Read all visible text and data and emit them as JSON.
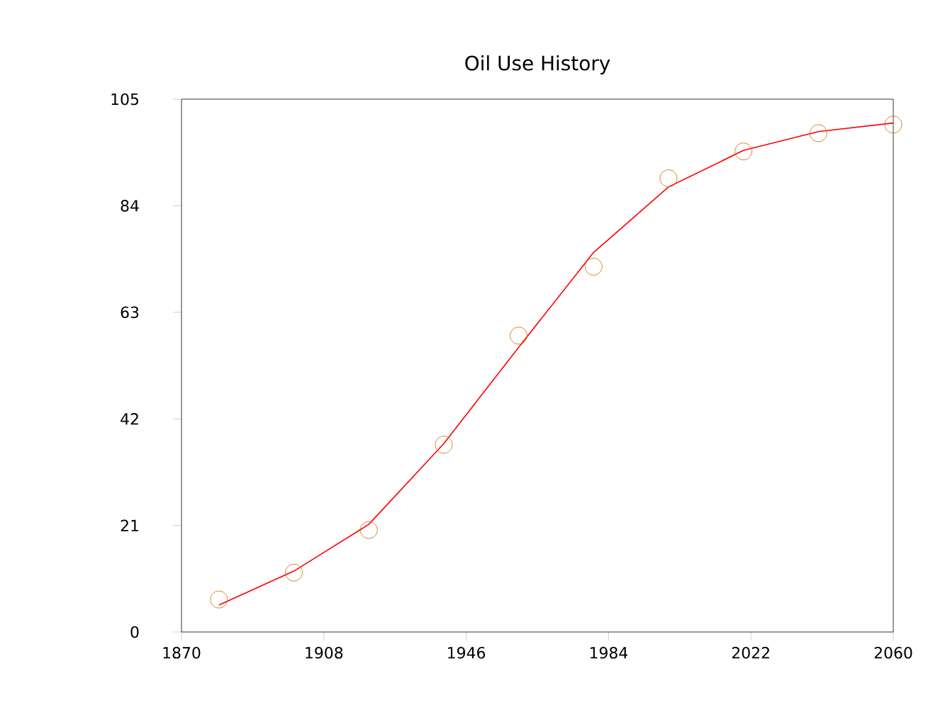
{
  "chart_data": {
    "type": "line",
    "title": "Oil Use History",
    "xlim": [
      1870,
      2060
    ],
    "ylim": [
      0,
      105
    ],
    "xticks": [
      1870,
      1908,
      1946,
      1984,
      2022,
      2060
    ],
    "yticks": [
      0,
      21,
      42,
      63,
      84,
      105
    ],
    "series": [
      {
        "color": "#ff0000",
        "marker": "none",
        "line_style": "solid",
        "x": [
          1880,
          1900,
          1920,
          1940,
          1960,
          1980,
          2000,
          2020,
          2040,
          2060
        ],
        "values": [
          5.3,
          12.0,
          21.2,
          37.1,
          56.1,
          74.8,
          87.7,
          94.9,
          98.6,
          100.3
        ]
      },
      {
        "type": "scatter",
        "color": "#cc6600",
        "marker": "circle",
        "x": [
          1880,
          1900,
          1920,
          1940,
          1960,
          1980,
          2000,
          2020,
          2040,
          2060
        ],
        "values": [
          6.4,
          11.7,
          20.1,
          36.9,
          58.4,
          72.0,
          89.4,
          94.7,
          98.3,
          100.0
        ]
      }
    ]
  }
}
